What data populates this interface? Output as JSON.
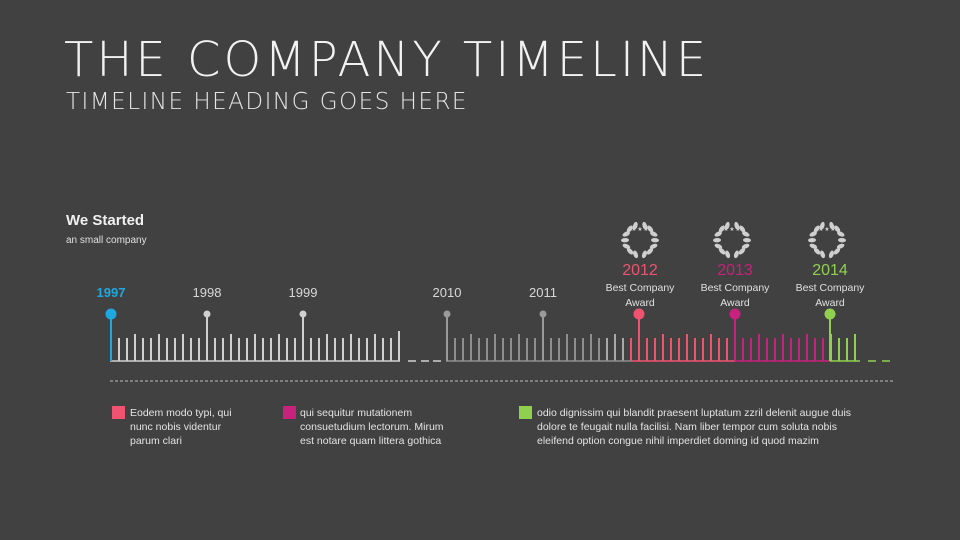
{
  "header": {
    "title": "THE COMPANY TIMELINE",
    "subtitle": "TIMELINE HEADING GOES HERE"
  },
  "started": {
    "title": "We Started",
    "subtitle": "an small company"
  },
  "timeline": {
    "years": [
      {
        "label": "1997",
        "color": "#1fa8e0",
        "bold": true
      },
      {
        "label": "1998",
        "color": "#d0d0d0"
      },
      {
        "label": "1999",
        "color": "#d0d0d0"
      },
      {
        "label": "2010",
        "color": "#9a9a9a"
      },
      {
        "label": "2011",
        "color": "#9a9a9a"
      }
    ],
    "awards": [
      {
        "year": "2012",
        "text_line1": "Best Company",
        "text_line2": "Award",
        "color": "#f0536f"
      },
      {
        "year": "2013",
        "text_line1": "Best Company",
        "text_line2": "Award",
        "color": "#c8217e"
      },
      {
        "year": "2014",
        "text_line1": "Best Company",
        "text_line2": "Award",
        "color": "#8fd14f"
      }
    ]
  },
  "legend": [
    {
      "color": "#f0536f",
      "text": [
        "Eodem modo typi, qui",
        "nunc nobis videntur",
        "parum clari"
      ]
    },
    {
      "color": "#c8217e",
      "text": [
        "qui sequitur mutationem",
        "consuetudium lectorum. Mirum",
        "est notare quam littera gothica"
      ]
    },
    {
      "color": "#8fd14f",
      "text": [
        "odio dignissim qui blandit praesent luptatum zzril delenit augue duis",
        "dolore te feugait nulla facilisi. Nam liber tempor cum soluta nobis",
        "eleifend option congue nihil imperdiet doming id quod mazim"
      ]
    }
  ]
}
